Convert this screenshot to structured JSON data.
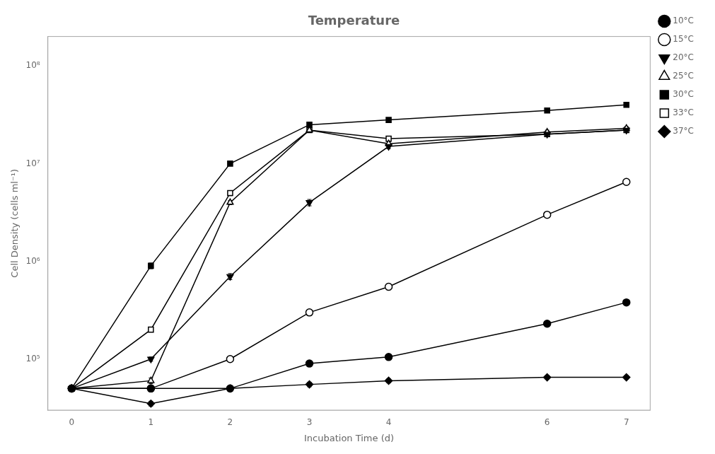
{
  "chart_data": {
    "type": "line",
    "title": "Temperature",
    "x_label": "Incubation Time (d)",
    "y_label": "Cell Density (cells ml⁻¹)",
    "x": [
      0,
      1,
      2,
      3,
      4,
      6,
      7
    ],
    "series": [
      {
        "name": "10°C",
        "color": "black",
        "marker": "circle",
        "values": [
          50000.0,
          50000.0,
          50000.0,
          90000.0,
          105000.0,
          230000.0,
          380000.0
        ],
        "yerr": [
          3000.0,
          3000.0,
          3000.0,
          5000.0,
          5000.0,
          15000.0,
          20000.0
        ]
      },
      {
        "name": "15°C",
        "color": "black",
        "marker": "circle-open",
        "values": [
          50000.0,
          50000.0,
          100000.0,
          300000.0,
          550000.0,
          3000000.0,
          6500000.0
        ],
        "yerr": [
          3000.0,
          3000.0,
          5000.0,
          20000.0,
          40000.0,
          200000.0,
          400000.0
        ]
      },
      {
        "name": "20°C",
        "color": "black",
        "marker": "triangle-down",
        "values": [
          50000.0,
          100000.0,
          700000.0,
          4000000.0,
          15000000.0,
          20000000.0,
          22000000.0
        ],
        "yerr": [
          3000.0,
          5000.0,
          50000.0,
          300000.0,
          800000.0,
          1000000.0,
          1000000.0
        ]
      },
      {
        "name": "25°C",
        "color": "black",
        "marker": "triangle-up-open",
        "values": [
          50000.0,
          60000.0,
          4000000.0,
          22000000.0,
          16000000.0,
          21000000.0,
          23000000.0
        ],
        "yerr": [
          3000.0,
          4000.0,
          200000.0,
          1000000.0,
          800000.0,
          1000000.0,
          1000000.0
        ]
      },
      {
        "name": "30°C",
        "color": "black",
        "marker": "square",
        "values": [
          50000.0,
          900000.0,
          10000000.0,
          25000000.0,
          28000000.0,
          35000000.0,
          40000000.0
        ],
        "yerr": [
          3000.0,
          60000.0,
          500000.0,
          1200000.0,
          1200000.0,
          1500000.0,
          2000000.0
        ]
      },
      {
        "name": "33°C",
        "color": "black",
        "marker": "square-open",
        "values": [
          50000.0,
          200000.0,
          5000000.0,
          22000000.0,
          18000000.0,
          20000000.0,
          22000000.0
        ],
        "yerr": [
          3000.0,
          10000.0,
          300000.0,
          1000000.0,
          800000.0,
          1000000.0,
          1000000.0
        ]
      },
      {
        "name": "37°C",
        "color": "black",
        "marker": "diamond",
        "values": [
          50000.0,
          35000.0,
          50000.0,
          55000.0,
          60000.0,
          65000.0,
          65000.0
        ],
        "yerr": [
          3000.0,
          2000.0,
          3000.0,
          3000.0,
          3000.0,
          3000.0,
          3000.0
        ]
      }
    ],
    "xlim": [
      -0.3,
      7.3
    ],
    "xticks": [
      0,
      1,
      2,
      3,
      4,
      6,
      7
    ],
    "ylim": [
      30000,
      200000000
    ],
    "yticks": [
      {
        "value": 100000,
        "label": "10⁵"
      },
      {
        "value": 1000000,
        "label": "10⁶"
      },
      {
        "value": 10000000,
        "label": "10⁷"
      },
      {
        "value": 100000000,
        "label": "10⁸"
      }
    ],
    "log": "y",
    "grid": false,
    "legend": "upper right"
  }
}
